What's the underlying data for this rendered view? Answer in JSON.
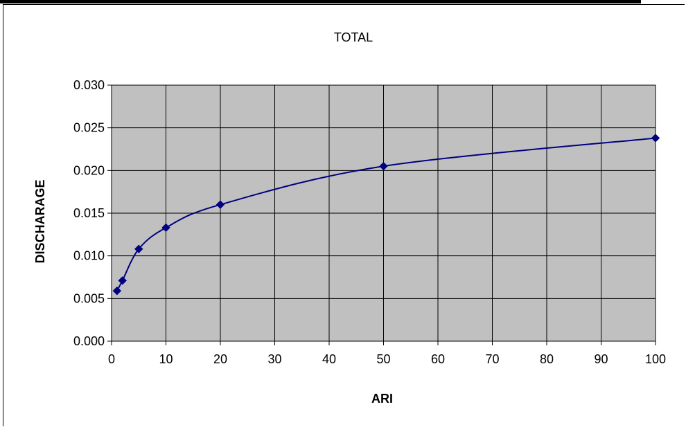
{
  "chart_data": {
    "type": "line",
    "title": "TOTAL",
    "xlabel": "ARI",
    "ylabel": "DISCHARAGE",
    "xlim": [
      0,
      100
    ],
    "ylim": [
      0,
      0.03
    ],
    "x_ticks": [
      "0",
      "10",
      "20",
      "30",
      "40",
      "50",
      "60",
      "70",
      "80",
      "90",
      "100"
    ],
    "y_ticks": [
      "0.000",
      "0.005",
      "0.010",
      "0.015",
      "0.020",
      "0.025",
      "0.030"
    ],
    "grid": true,
    "legend": "none",
    "plot_background": "#c0c0c0",
    "series": [
      {
        "color": "#000080",
        "smooth": true,
        "marker": "diamond",
        "x": [
          1,
          2,
          5,
          10,
          20,
          50,
          100
        ],
        "y": [
          0.0059,
          0.0071,
          0.0108,
          0.0133,
          0.016,
          0.0205,
          0.0238
        ]
      }
    ]
  }
}
